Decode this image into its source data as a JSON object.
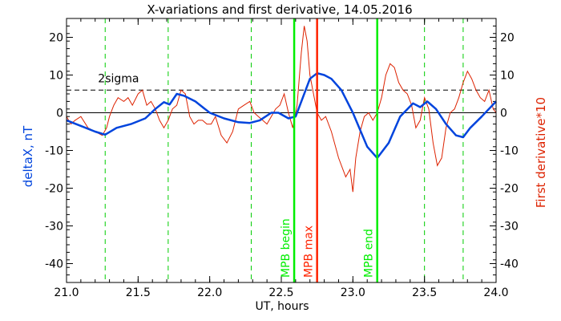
{
  "chart_data": {
    "type": "line",
    "title": "X-variations and first derivative, 14.05.2016",
    "xlabel": "UT, hours",
    "ylabel_left": "deltaX, nT",
    "ylabel_right": "First derivative*10",
    "xlim": [
      21.0,
      24.0
    ],
    "ylim": [
      -45,
      25
    ],
    "x_ticks": [
      21.0,
      21.5,
      22.0,
      22.5,
      23.0,
      23.5,
      24.0
    ],
    "x_tick_labels": [
      "21.0",
      "21.5",
      "22.0",
      "22.5",
      "23.0",
      "23.5",
      "24.0"
    ],
    "y_ticks": [
      -40,
      -30,
      -20,
      -10,
      0,
      10,
      20
    ],
    "y_tick_labels": [
      "-40",
      "-30",
      "-20",
      "-10",
      "0",
      "10",
      "20"
    ],
    "sigma_label": "2sigma",
    "sigma_level": 6,
    "colors": {
      "deltaX": "#0044dd",
      "derivative": "#dd2200",
      "mpb_lines": "#00ee00",
      "mpb_max": "#ff2200",
      "green_dashed": "#00cc00"
    },
    "green_dashed_x": [
      21.27,
      21.71,
      22.29,
      23.5,
      23.77
    ],
    "markers": [
      {
        "label": "MPB begin",
        "x": 22.59,
        "color": "#00ee00"
      },
      {
        "label": "MPB max",
        "x": 22.75,
        "color": "#ff2200"
      },
      {
        "label": "MPB end",
        "x": 23.17,
        "color": "#00ee00"
      }
    ],
    "series": [
      {
        "name": "deltaX, nT",
        "x": [
          21.0,
          21.1,
          21.2,
          21.27,
          21.35,
          21.45,
          21.55,
          21.62,
          21.68,
          21.72,
          21.77,
          21.82,
          21.9,
          22.0,
          22.1,
          22.2,
          22.28,
          22.35,
          22.43,
          22.48,
          22.55,
          22.6,
          22.65,
          22.7,
          22.75,
          22.8,
          22.85,
          22.92,
          23.0,
          23.1,
          23.17,
          23.25,
          23.33,
          23.42,
          23.47,
          23.52,
          23.58,
          23.65,
          23.72,
          23.77,
          23.82,
          23.9,
          24.0
        ],
        "y": [
          -2,
          -3.5,
          -5,
          -5.8,
          -4,
          -3,
          -1.5,
          1,
          2.8,
          2.2,
          5,
          4.5,
          3,
          0,
          -1.5,
          -2.5,
          -2.7,
          -2,
          0,
          0,
          -1.5,
          -1,
          4,
          9,
          10.5,
          10,
          9,
          6,
          0,
          -9,
          -12,
          -8,
          -1,
          2.5,
          1.5,
          3,
          1,
          -3,
          -6,
          -6.5,
          -4,
          -1,
          3
        ]
      },
      {
        "name": "First derivative*10",
        "x": [
          21.0,
          21.03,
          21.06,
          21.1,
          21.15,
          21.2,
          21.25,
          21.28,
          21.3,
          21.33,
          21.36,
          21.4,
          21.43,
          21.46,
          21.5,
          21.53,
          21.56,
          21.59,
          21.62,
          21.65,
          21.68,
          21.71,
          21.74,
          21.77,
          21.8,
          21.83,
          21.86,
          21.89,
          21.92,
          21.95,
          21.98,
          22.01,
          22.04,
          22.08,
          22.12,
          22.16,
          22.2,
          22.24,
          22.28,
          22.31,
          22.34,
          22.37,
          22.4,
          22.43,
          22.46,
          22.49,
          22.52,
          22.55,
          22.58,
          22.61,
          22.64,
          22.66,
          22.68,
          22.7,
          22.72,
          22.75,
          22.78,
          22.81,
          22.85,
          22.9,
          22.95,
          22.98,
          23.0,
          23.02,
          23.05,
          23.08,
          23.11,
          23.14,
          23.17,
          23.2,
          23.23,
          23.26,
          23.29,
          23.32,
          23.35,
          23.38,
          23.41,
          23.44,
          23.47,
          23.5,
          23.53,
          23.56,
          23.59,
          23.62,
          23.65,
          23.68,
          23.71,
          23.74,
          23.77,
          23.8,
          23.83,
          23.86,
          23.89,
          23.92,
          23.95,
          23.98,
          24.0
        ],
        "y": [
          -1,
          -3,
          -2,
          -1,
          -4,
          -5,
          -6,
          -4,
          -1,
          2,
          4,
          3,
          4,
          2,
          5,
          6,
          2,
          3,
          1,
          -2,
          -4,
          -2,
          1,
          2,
          6,
          5,
          -1,
          -3,
          -2,
          -2,
          -3,
          -3,
          -1,
          -6,
          -8,
          -5,
          1,
          2,
          3,
          0,
          -1,
          -2,
          -3,
          -1,
          1,
          2,
          5,
          0,
          -4,
          2,
          16,
          23,
          19,
          10,
          6,
          0,
          -2,
          -1,
          -5,
          -12,
          -17,
          -15,
          -21,
          -12,
          -5,
          -1,
          0,
          -2,
          0,
          4,
          10,
          13,
          12,
          8,
          6,
          5,
          2,
          -4,
          -2,
          4,
          1,
          -8,
          -14,
          -12,
          -4,
          0,
          1,
          4,
          8,
          11,
          9,
          6,
          4,
          3,
          6,
          1,
          0
        ]
      }
    ]
  }
}
